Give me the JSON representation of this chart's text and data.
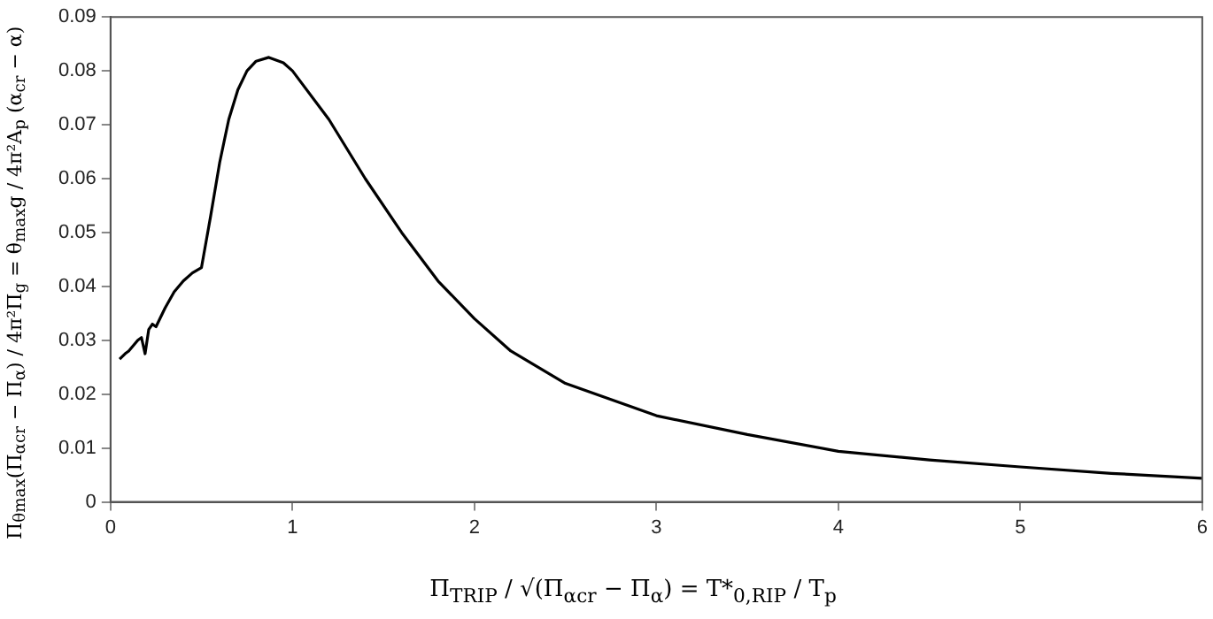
{
  "chart_data": {
    "type": "line",
    "xlabel": "Π$_{TRIP}$ / √(Π$_{αcr}$ − Π$_{α}$) = T*$_{0,RIP}$ / T$_{p}$",
    "ylabel": "Π$_{θmax}$(Π$_{αcr}$ − Π$_{α}$) / 4π²Π$_{g}$ = θ$_{max}$g / 4π²A$_{p}$ (α$_{cr}$ − α)",
    "xlim": [
      0,
      6
    ],
    "xticks": [
      0,
      1,
      2,
      3,
      4,
      5,
      6
    ],
    "ylim": [
      0,
      0.09
    ],
    "yticks": [
      0,
      0.01,
      0.02,
      0.03,
      0.04,
      0.05,
      0.06,
      0.07,
      0.08,
      0.09
    ],
    "grid": false,
    "legend": false,
    "marker": "none",
    "line_style": "solid",
    "series": [
      {
        "color": "#000000",
        "x": [
          0.05,
          0.08,
          0.1,
          0.15,
          0.17,
          0.19,
          0.21,
          0.23,
          0.25,
          0.3,
          0.35,
          0.4,
          0.45,
          0.5,
          0.55,
          0.6,
          0.65,
          0.7,
          0.75,
          0.8,
          0.87,
          0.95,
          1.0,
          1.2,
          1.4,
          1.6,
          1.8,
          2.0,
          2.2,
          2.5,
          3.0,
          3.5,
          4.0,
          4.5,
          5.0,
          5.5,
          6.0
        ],
        "values": [
          0.0265,
          0.0275,
          0.028,
          0.03,
          0.0305,
          0.0275,
          0.032,
          0.033,
          0.0325,
          0.036,
          0.039,
          0.041,
          0.0425,
          0.0435,
          0.053,
          0.063,
          0.071,
          0.0765,
          0.08,
          0.0818,
          0.0825,
          0.0815,
          0.08,
          0.071,
          0.06,
          0.05,
          0.041,
          0.034,
          0.028,
          0.022,
          0.016,
          0.0125,
          0.0094,
          0.0078,
          0.0065,
          0.0053,
          0.0044
        ]
      }
    ]
  }
}
